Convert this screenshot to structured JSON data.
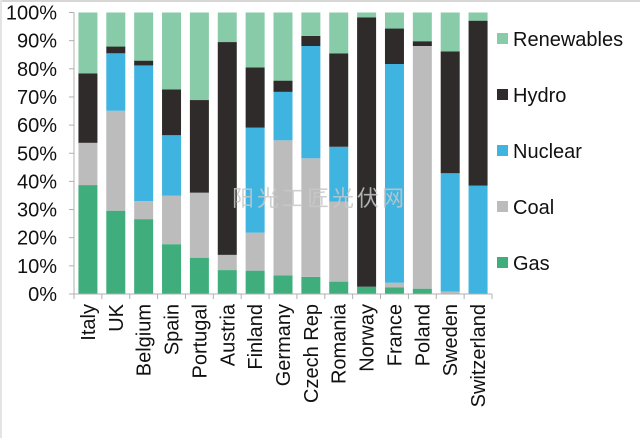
{
  "chart_data": {
    "type": "bar",
    "stacked": true,
    "title": "",
    "xlabel": "",
    "ylabel": "",
    "ylim": [
      0,
      100
    ],
    "y_ticks": [
      "0%",
      "10%",
      "20%",
      "30%",
      "40%",
      "50%",
      "60%",
      "70%",
      "80%",
      "90%",
      "100%"
    ],
    "grid": false,
    "legend_position": "right",
    "categories": [
      "Italy",
      "UK",
      "Belgium",
      "Spain",
      "Portugal",
      "Austria",
      "Finland",
      "Germany",
      "Czech Rep",
      "Romania",
      "Norway",
      "France",
      "Poland",
      "Sweden",
      "Switzerland"
    ],
    "series": [
      {
        "name": "Gas",
        "color": "#3fae7c",
        "values": [
          38.7,
          29.6,
          26.6,
          17.7,
          12.9,
          8.5,
          8.3,
          6.6,
          6.1,
          4.4,
          2.6,
          2.4,
          1.9,
          0.0,
          0.0
        ]
      },
      {
        "name": "Coal",
        "color": "#bcbcbc",
        "values": [
          15.0,
          35.5,
          6.4,
          17.2,
          23.1,
          5.4,
          13.5,
          48.0,
          42.1,
          28.4,
          0.0,
          1.6,
          86.2,
          0.9,
          0.0
        ]
      },
      {
        "name": "Nuclear",
        "color": "#40b4e0",
        "values": [
          0.0,
          20.4,
          48.2,
          21.5,
          0.0,
          0.0,
          37.3,
          17.2,
          39.9,
          19.5,
          0.0,
          77.7,
          0.0,
          42.0,
          38.5
        ]
      },
      {
        "name": "Hydro",
        "color": "#2e2b2a",
        "values": [
          24.7,
          2.4,
          1.7,
          16.3,
          32.9,
          75.6,
          21.4,
          4.0,
          3.6,
          33.2,
          95.7,
          12.6,
          1.7,
          43.3,
          58.6
        ]
      },
      {
        "name": "Renewables",
        "color": "#88cba8",
        "values": [
          21.6,
          12.1,
          17.1,
          27.3,
          31.1,
          10.5,
          19.5,
          24.2,
          8.3,
          14.5,
          1.7,
          5.7,
          10.2,
          13.8,
          2.9
        ]
      }
    ],
    "legend_order": [
      "Renewables",
      "Hydro",
      "Nuclear",
      "Coal",
      "Gas"
    ]
  },
  "watermark": "阳光工匠光伏网",
  "colors": {
    "axis": "#b0b0b0",
    "text": "#111111"
  }
}
